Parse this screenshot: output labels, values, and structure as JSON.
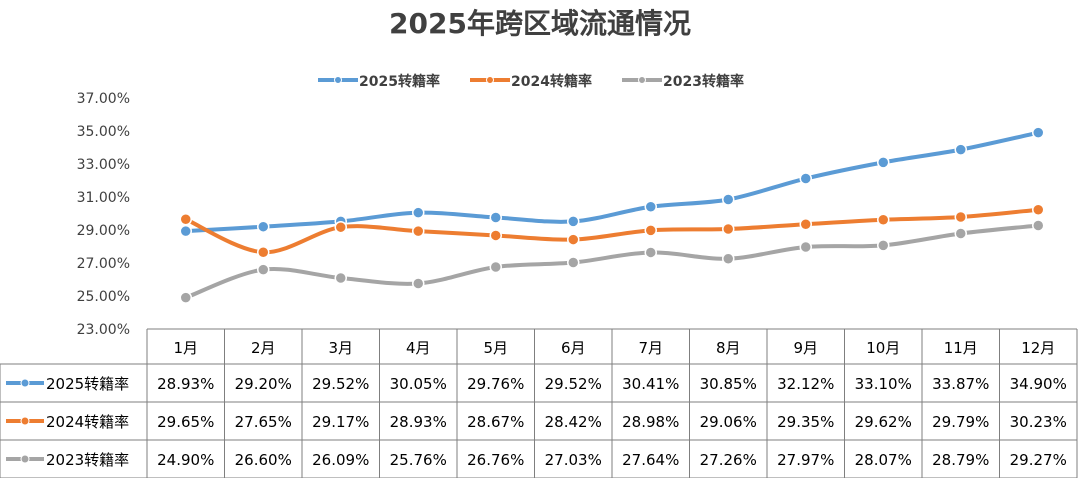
{
  "chart_data": {
    "type": "line",
    "title": "2025年跨区域流通情况",
    "categories": [
      "1月",
      "2月",
      "3月",
      "4月",
      "5月",
      "6月",
      "7月",
      "8月",
      "9月",
      "10月",
      "11月",
      "12月"
    ],
    "ylim": [
      23,
      37
    ],
    "yticks": [
      "23.00%",
      "25.00%",
      "27.00%",
      "29.00%",
      "31.00%",
      "33.00%",
      "35.00%",
      "37.00%"
    ],
    "grid": false,
    "legend": "top",
    "data_table": true,
    "series": [
      {
        "name": "2025转籍率",
        "color": "#5B9BD5",
        "values": [
          28.93,
          29.2,
          29.52,
          30.05,
          29.76,
          29.52,
          30.41,
          30.85,
          32.12,
          33.1,
          33.87,
          34.9
        ],
        "labels": [
          "28.93%",
          "29.20%",
          "29.52%",
          "30.05%",
          "29.76%",
          "29.52%",
          "30.41%",
          "30.85%",
          "32.12%",
          "33.10%",
          "33.87%",
          "34.90%"
        ]
      },
      {
        "name": "2024转籍率",
        "color": "#ED7D31",
        "values": [
          29.65,
          27.65,
          29.17,
          28.93,
          28.67,
          28.42,
          28.98,
          29.06,
          29.35,
          29.62,
          29.79,
          30.23
        ],
        "labels": [
          "29.65%",
          "27.65%",
          "29.17%",
          "28.93%",
          "28.67%",
          "28.42%",
          "28.98%",
          "29.06%",
          "29.35%",
          "29.62%",
          "29.79%",
          "30.23%"
        ]
      },
      {
        "name": "2023转籍率",
        "color": "#A5A5A5",
        "values": [
          24.9,
          26.6,
          26.09,
          25.76,
          26.76,
          27.03,
          27.64,
          27.26,
          27.97,
          28.07,
          28.79,
          29.27
        ],
        "labels": [
          "24.90%",
          "26.60%",
          "26.09%",
          "25.76%",
          "26.76%",
          "27.03%",
          "27.64%",
          "27.26%",
          "27.97%",
          "28.07%",
          "28.79%",
          "29.27%"
        ]
      }
    ]
  }
}
